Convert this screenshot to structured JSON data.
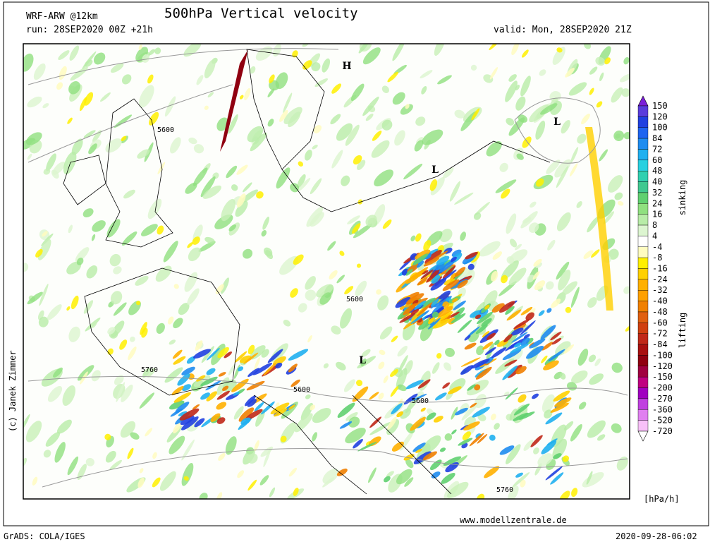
{
  "header": {
    "model": "WRF-ARW @12km",
    "title": "500hPa Vertical velocity",
    "run": "run: 28SEP2020 00Z +21h",
    "valid": "valid: Mon, 28SEP2020 21Z"
  },
  "map": {
    "pressure_centers": [
      "H",
      "L",
      "L",
      "L"
    ],
    "contour_labels": [
      "5600",
      "5600",
      "5760",
      "5600",
      "5600",
      "5760"
    ]
  },
  "colorbar": {
    "labels": [
      "150",
      "120",
      "100",
      "84",
      "72",
      "60",
      "48",
      "40",
      "32",
      "24",
      "16",
      "8",
      "4",
      "-4",
      "-8",
      "-16",
      "-24",
      "-32",
      "-40",
      "-48",
      "-60",
      "-72",
      "-84",
      "-100",
      "-120",
      "-150",
      "-200",
      "-270",
      "-360",
      "-520",
      "-720"
    ],
    "colors": [
      "#7b1fd8",
      "#5a3cdc",
      "#2040e0",
      "#1e64f0",
      "#1e8cf0",
      "#20b0f0",
      "#28d0e0",
      "#30d0b0",
      "#40c890",
      "#60d070",
      "#90e080",
      "#b8eca8",
      "#dcf5d0",
      "#ffffff",
      "#fffcc0",
      "#fff000",
      "#ffd000",
      "#ffb000",
      "#ffa000",
      "#f08000",
      "#e06010",
      "#d04010",
      "#c02818",
      "#a81010",
      "#900010",
      "#a00040",
      "#c00080",
      "#a000c0",
      "#c040e0",
      "#e080f0",
      "#f8c0f8",
      "#ffffff"
    ],
    "sinking": "sinking",
    "lifting": "lifting",
    "unit": "[hPa/h]"
  },
  "footer": {
    "credit": "(c) Janek Zimmer",
    "source": "www.modellzentrale.de",
    "software": "GrADS: COLA/IGES",
    "timestamp": "2020-09-28-06:02"
  }
}
